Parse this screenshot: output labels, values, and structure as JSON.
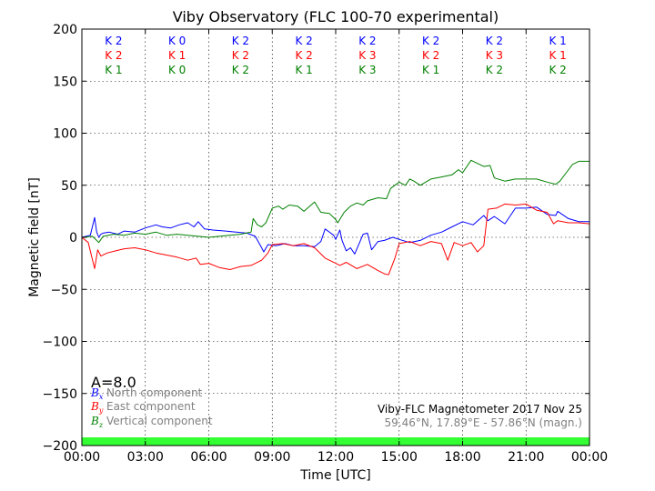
{
  "chart_data": {
    "type": "line",
    "title": "Viby Observatory (FLC 100-70 experimental)",
    "xlabel": "Time [UTC]",
    "ylabel": "Magnetic field [nT]",
    "xlim": [
      0,
      24
    ],
    "ylim": [
      -200,
      200
    ],
    "x_ticks": [
      "00:00",
      "03:00",
      "06:00",
      "09:00",
      "12:00",
      "15:00",
      "18:00",
      "21:00",
      "00:00"
    ],
    "y_ticks": [
      "200",
      "150",
      "100",
      "50",
      "0",
      "−50",
      "−100",
      "−150",
      "−200"
    ],
    "grid": true,
    "k_index": {
      "north": [
        "K 2",
        "K 0",
        "K 2",
        "K 2",
        "K 2",
        "K 2",
        "K 2",
        "K 1"
      ],
      "east": [
        "K 2",
        "K 1",
        "K 2",
        "K 2",
        "K 3",
        "K 2",
        "K 3",
        "K 1"
      ],
      "vertical": [
        "K 1",
        "K 0",
        "K 2",
        "K 1",
        "K 3",
        "K 1",
        "K 2",
        "K 2"
      ]
    },
    "activity_label": "A=8.0",
    "legend": [
      {
        "symbol": "B",
        "sub": "x",
        "label": "North component"
      },
      {
        "symbol": "B",
        "sub": "y",
        "label": "East component"
      },
      {
        "symbol": "B",
        "sub": "z",
        "label": "Vertical component"
      }
    ],
    "info_line1": "Viby-FLC Magnetometer 2017 Nov 25",
    "info_line2": "59.46°N, 17.89°E - 57.86°N (magn.)",
    "colors": {
      "north": "#0000ff",
      "east": "#ff0000",
      "vertical": "#008000",
      "status_bar": "#33ff33"
    },
    "series": [
      {
        "name": "North component",
        "x": [
          0,
          0.4,
          0.6,
          0.7,
          0.8,
          0.9,
          1.0,
          1.3,
          1.7,
          2.0,
          2.5,
          3.0,
          3.5,
          3.8,
          4.2,
          4.6,
          5.0,
          5.3,
          5.5,
          5.8,
          6.2,
          6.8,
          7.3,
          7.8,
          8.2,
          8.5,
          8.6,
          8.8,
          9.2,
          9.6,
          10.0,
          10.5,
          11.0,
          11.3,
          11.5,
          11.9,
          12.0,
          12.2,
          12.3,
          12.5,
          12.7,
          12.9,
          13.3,
          13.5,
          13.7,
          14.0,
          14.3,
          14.7,
          15.0,
          15.5,
          16.0,
          16.5,
          17.0,
          17.5,
          18.0,
          18.5,
          19.0,
          19.2,
          19.5,
          20.0,
          20.5,
          21.0,
          21.5,
          22.0,
          22.4,
          22.5,
          23.0,
          23.5,
          24.0
        ],
        "y": [
          0,
          2,
          19,
          5,
          0,
          3,
          4,
          5,
          3,
          6,
          5,
          9,
          12,
          10,
          9,
          12,
          14,
          10,
          15,
          8,
          7,
          6,
          5,
          4,
          1,
          -10,
          -14,
          -7,
          -8,
          -6,
          -8,
          -8,
          -9,
          -4,
          8,
          2,
          -2,
          7,
          -3,
          -13,
          -10,
          -16,
          3,
          4,
          -12,
          -4,
          -3,
          0,
          -2,
          -5,
          -3,
          2,
          5,
          10,
          15,
          12,
          21,
          16,
          20,
          13,
          28,
          28,
          29,
          22,
          21,
          25,
          18,
          15,
          15
        ]
      },
      {
        "name": "East component",
        "x": [
          0,
          0.3,
          0.6,
          0.75,
          0.9,
          1.2,
          1.6,
          2.0,
          2.5,
          3.0,
          3.5,
          4.0,
          4.5,
          5.0,
          5.4,
          5.6,
          6.0,
          6.5,
          7.0,
          7.5,
          8.0,
          8.5,
          8.8,
          9.0,
          9.5,
          10.0,
          10.5,
          11.0,
          11.5,
          12.0,
          12.2,
          12.5,
          13.0,
          13.5,
          14.0,
          14.3,
          14.5,
          14.8,
          15.0,
          15.5,
          16.0,
          16.5,
          17.0,
          17.3,
          17.6,
          18.0,
          18.4,
          18.7,
          19.0,
          19.2,
          19.6,
          20.0,
          20.5,
          21.0,
          21.5,
          22.0,
          22.3,
          22.5,
          23.0,
          23.5,
          24.0
        ],
        "y": [
          0,
          -5,
          -30,
          -12,
          -18,
          -15,
          -13,
          -11,
          -10,
          -12,
          -15,
          -17,
          -19,
          -22,
          -20,
          -26,
          -25,
          -29,
          -31,
          -28,
          -27,
          -22,
          -15,
          -7,
          -6,
          -8,
          -6,
          -10,
          -20,
          -25,
          -27,
          -24,
          -30,
          -26,
          -32,
          -35,
          -36,
          -20,
          -6,
          -4,
          -8,
          -4,
          -6,
          -22,
          -5,
          -8,
          -5,
          -14,
          -8,
          27,
          28,
          32,
          31,
          32,
          26,
          24,
          13,
          16,
          14,
          14,
          13
        ]
      },
      {
        "name": "Vertical component",
        "x": [
          0,
          0.5,
          0.8,
          1.0,
          1.5,
          2.0,
          2.5,
          3.0,
          3.5,
          4.0,
          4.5,
          5.0,
          5.5,
          6.0,
          6.5,
          7.0,
          7.5,
          8.0,
          8.1,
          8.3,
          8.5,
          8.7,
          9.0,
          9.3,
          9.5,
          9.8,
          10.2,
          10.5,
          11.0,
          11.3,
          11.7,
          12.0,
          12.1,
          12.4,
          12.7,
          13.0,
          13.3,
          13.5,
          14.0,
          14.4,
          14.6,
          15.0,
          15.3,
          15.5,
          15.7,
          16.0,
          16.5,
          17.0,
          17.5,
          17.8,
          18.0,
          18.4,
          18.7,
          19.0,
          19.3,
          19.5,
          20.0,
          20.5,
          21.0,
          21.5,
          22.0,
          22.4,
          22.6,
          22.9,
          23.2,
          23.5,
          24.0
        ],
        "y": [
          0,
          1,
          -5,
          1,
          3,
          2,
          4,
          3,
          5,
          2,
          3,
          2,
          1,
          0,
          1,
          2,
          3,
          5,
          18,
          12,
          10,
          14,
          28,
          30,
          27,
          31,
          30,
          25,
          34,
          24,
          23,
          17,
          14,
          24,
          30,
          33,
          31,
          35,
          38,
          37,
          47,
          53,
          50,
          56,
          54,
          50,
          56,
          58,
          60,
          65,
          62,
          74,
          71,
          68,
          69,
          57,
          54,
          56,
          56,
          56,
          53,
          51,
          54,
          62,
          70,
          73,
          73
        ]
      }
    ]
  }
}
